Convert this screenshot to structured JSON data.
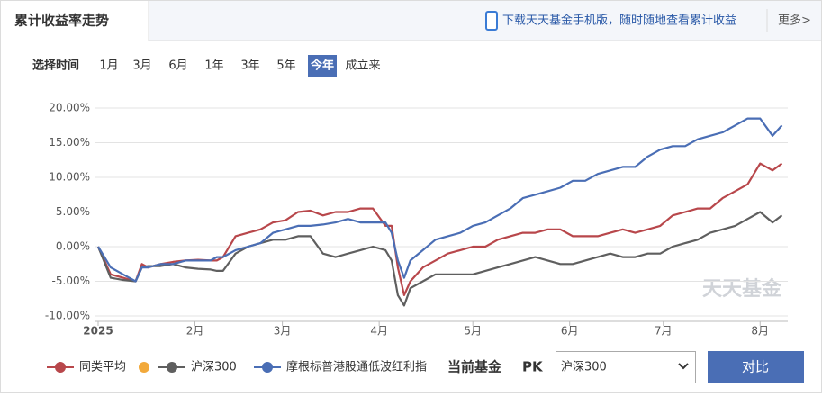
{
  "header": {
    "tab": "累计收益率走势",
    "app_link": "下载天天基金手机版，随时随地查看累计收益",
    "more": "更多>"
  },
  "time_range": {
    "label": "选择时间",
    "options": [
      "1月",
      "3月",
      "6月",
      "1年",
      "3年",
      "5年",
      "今年",
      "成立来"
    ],
    "selected": "今年"
  },
  "chart_data": {
    "type": "line",
    "watermark": "天天基金",
    "x": [
      0,
      4,
      8,
      12,
      14,
      16,
      20,
      24,
      28,
      32,
      36,
      38,
      40,
      44,
      48,
      52,
      56,
      60,
      64,
      68,
      72,
      76,
      80,
      84,
      88,
      92,
      94,
      96,
      98,
      100,
      104,
      108,
      112,
      116,
      120,
      124,
      128,
      132,
      136,
      140,
      144,
      148,
      152,
      156,
      160,
      164,
      168,
      172,
      176,
      180,
      184,
      188,
      192,
      196,
      200,
      204,
      208,
      212,
      216,
      219
    ],
    "xlim": [
      0,
      220
    ],
    "xticks": [
      {
        "value": 0,
        "label": "2025"
      },
      {
        "value": 31,
        "label": "2月"
      },
      {
        "value": 59,
        "label": "3月"
      },
      {
        "value": 90,
        "label": "4月"
      },
      {
        "value": 120,
        "label": "5月"
      },
      {
        "value": 151,
        "label": "6月"
      },
      {
        "value": 181,
        "label": "7月"
      },
      {
        "value": 212,
        "label": "8月"
      }
    ],
    "ylim": [
      -10,
      20
    ],
    "yticks": [
      {
        "value": -10,
        "label": "-10.00%"
      },
      {
        "value": -5,
        "label": "-5.00%"
      },
      {
        "value": 0,
        "label": "0.00%"
      },
      {
        "value": 5,
        "label": "5.00%"
      },
      {
        "value": 10,
        "label": "10.00%"
      },
      {
        "value": 15,
        "label": "15.00%"
      },
      {
        "value": 20,
        "label": "20.00%"
      }
    ],
    "grid": true,
    "series": [
      {
        "name": "同类平均",
        "color": "#b8474b",
        "values": [
          0,
          -4,
          -4.5,
          -5,
          -2.5,
          -3,
          -2.5,
          -2.2,
          -2,
          -1.9,
          -2,
          -2,
          -1.5,
          1.5,
          2,
          2.5,
          3.5,
          3.8,
          5,
          5.2,
          4.5,
          5,
          5,
          5.5,
          5.5,
          3,
          3,
          -3,
          -7,
          -5,
          -3,
          -2,
          -1,
          -0.5,
          0,
          0,
          1,
          1.5,
          2,
          2,
          2.5,
          2.5,
          1.5,
          1.5,
          1.5,
          2,
          2.5,
          2,
          2.5,
          3,
          4.5,
          5,
          5.5,
          5.5,
          7,
          8,
          9,
          12,
          11,
          12
        ]
      },
      {
        "name": "沪深300",
        "color": "#5f5f5f",
        "values": [
          0,
          -4.5,
          -4.8,
          -5,
          -3,
          -2.8,
          -2.8,
          -2.5,
          -3,
          -3.2,
          -3.3,
          -3.5,
          -3.5,
          -1,
          0,
          0.5,
          1,
          1,
          1.5,
          1.5,
          -1,
          -1.5,
          -1,
          -0.5,
          0,
          -0.5,
          -2,
          -7,
          -8.5,
          -6,
          -5,
          -4,
          -4,
          -4,
          -4,
          -3.5,
          -3,
          -2.5,
          -2,
          -1.5,
          -2,
          -2.5,
          -2.5,
          -2,
          -1.5,
          -1,
          -1.5,
          -1.5,
          -1,
          -1,
          0,
          0.5,
          1,
          2,
          2.5,
          3,
          4,
          5,
          3.5,
          4.5
        ]
      },
      {
        "name": "摩根标普港股通低波红利指",
        "color": "#4a6eb5",
        "values": [
          0,
          -3,
          -4,
          -5,
          -3,
          -3,
          -2.5,
          -2.5,
          -2,
          -2,
          -2,
          -1.5,
          -1.5,
          -0.5,
          0,
          0.5,
          2,
          2.5,
          3,
          3,
          3.2,
          3.5,
          4,
          3.5,
          3.5,
          3.5,
          2,
          -2,
          -4.5,
          -2,
          -0.5,
          1,
          1.5,
          2,
          3,
          3.5,
          4.5,
          5.5,
          7,
          7.5,
          8,
          8.5,
          9.5,
          9.5,
          10.5,
          11,
          11.5,
          11.5,
          13,
          14,
          14.5,
          14.5,
          15.5,
          16,
          16.5,
          17.5,
          18.5,
          18.5,
          16,
          17.5
        ]
      }
    ]
  },
  "compare": {
    "label": "当前基金",
    "pk": "PK",
    "select": "沪深300",
    "button": "对比"
  }
}
